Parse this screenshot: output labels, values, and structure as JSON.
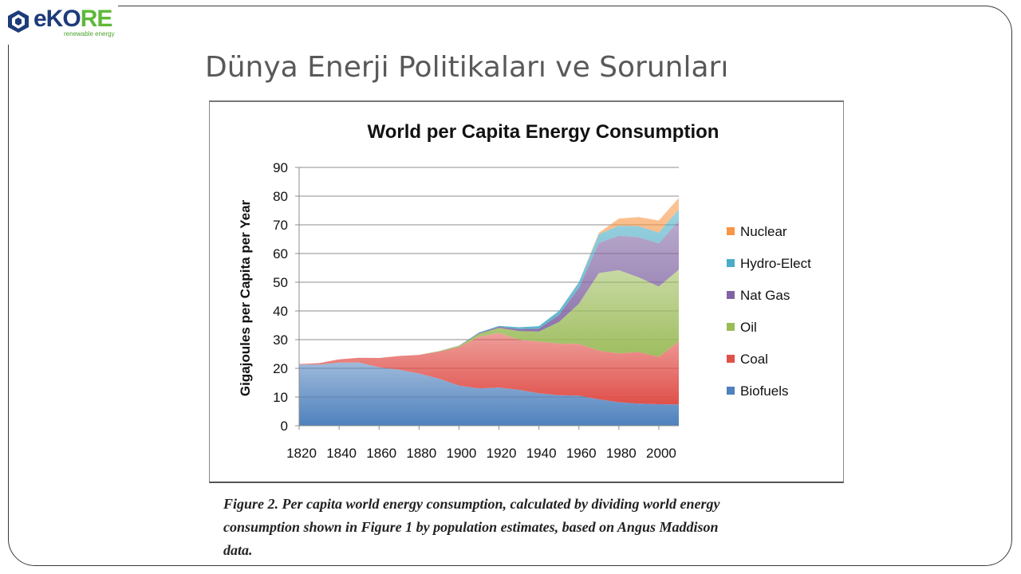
{
  "logo": {
    "brand_main": "eKO",
    "brand_accent": "RE",
    "tagline": "renewable energy",
    "colors": {
      "primary": "#1d3b7a",
      "accent": "#5fb83a"
    }
  },
  "slide": {
    "title": "Dünya Enerji Politikaları ve Sorunları"
  },
  "chart_data": {
    "type": "area",
    "stacked": true,
    "title": "World per Capita Energy Consumption",
    "xlabel": "",
    "ylabel": "Gigajoules per Capita per Year",
    "xlim": [
      1820,
      2010
    ],
    "ylim": [
      0,
      90
    ],
    "x_ticks": [
      1820,
      1840,
      1860,
      1880,
      1900,
      1920,
      1940,
      1960,
      1980,
      2000
    ],
    "y_ticks": [
      0,
      10,
      20,
      30,
      40,
      50,
      60,
      70,
      80,
      90
    ],
    "grid": "horizontal",
    "legend_position": "right",
    "x": [
      1820,
      1830,
      1840,
      1850,
      1860,
      1870,
      1880,
      1890,
      1900,
      1910,
      1920,
      1930,
      1940,
      1950,
      1960,
      1970,
      1980,
      1990,
      2000,
      2010
    ],
    "series": [
      {
        "name": "Biofuels",
        "color": "#4f81bd",
        "values": [
          21.3,
          21.3,
          22.0,
          22.0,
          20.4,
          19.5,
          18.2,
          16.4,
          14.0,
          13.0,
          13.3,
          12.5,
          11.3,
          10.6,
          10.5,
          9.2,
          8.2,
          7.7,
          7.5,
          7.4
        ]
      },
      {
        "name": "Coal",
        "color": "#e0504a",
        "values": [
          0.2,
          0.5,
          1.1,
          1.7,
          3.2,
          4.8,
          6.5,
          9.4,
          13.4,
          18.0,
          19.0,
          17.5,
          18.0,
          18.0,
          18.0,
          17.0,
          17.0,
          18.0,
          16.5,
          22.0
        ]
      },
      {
        "name": "Oil",
        "color": "#9bbb59",
        "values": [
          0,
          0,
          0,
          0,
          0,
          0,
          0,
          0.2,
          0.4,
          1.0,
          1.8,
          3.0,
          3.5,
          7.5,
          14.0,
          27.0,
          29.0,
          26.0,
          24.5,
          25.0
        ]
      },
      {
        "name": "Nat Gas",
        "color": "#8064a2",
        "values": [
          0,
          0,
          0,
          0,
          0,
          0,
          0,
          0,
          0.1,
          0.3,
          0.4,
          0.7,
          1.0,
          2.5,
          5.5,
          10.5,
          12.0,
          14.0,
          15.0,
          17.0
        ]
      },
      {
        "name": "Hydro-Elect",
        "color": "#4bacc6",
        "values": [
          0,
          0,
          0,
          0,
          0,
          0,
          0,
          0,
          0,
          0.2,
          0.3,
          0.6,
          0.9,
          1.4,
          2.0,
          3.0,
          3.5,
          3.8,
          3.8,
          4.0
        ]
      },
      {
        "name": "Nuclear",
        "color": "#f79646",
        "values": [
          0,
          0,
          0,
          0,
          0,
          0,
          0,
          0,
          0,
          0,
          0,
          0,
          0,
          0,
          0,
          0.5,
          2.5,
          3.2,
          4.2,
          4.0
        ]
      }
    ]
  },
  "caption": "Figure 2. Per capita world energy consumption, calculated by dividing world energy consumption shown in Figure 1 by population estimates, based on Angus Maddison data."
}
